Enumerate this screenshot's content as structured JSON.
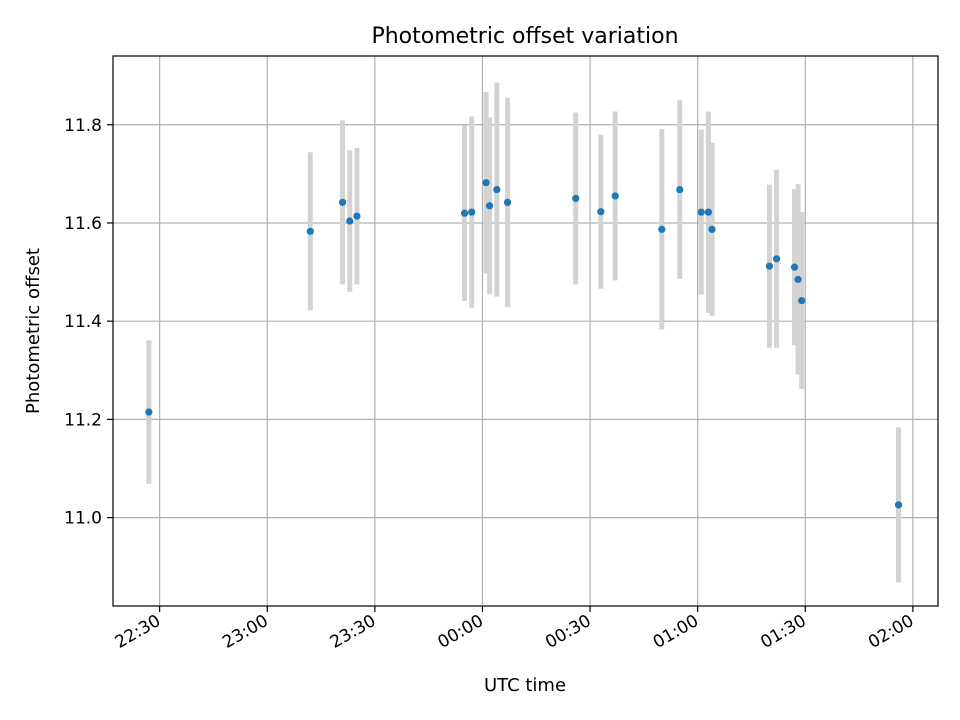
{
  "chart_data": {
    "type": "scatter",
    "title": "Photometric offset variation",
    "xlabel": "UTC time",
    "ylabel": "Photometric offset",
    "x_ticks": [
      "22:30",
      "23:00",
      "23:30",
      "00:00",
      "00:30",
      "01:00",
      "01:30",
      "02:00"
    ],
    "y_ticks": [
      "11.0",
      "11.2",
      "11.4",
      "11.6",
      "11.8"
    ],
    "xlim": [
      "22:17",
      "02:07"
    ],
    "ylim": [
      10.82,
      11.94
    ],
    "grid": true,
    "colors": {
      "points": "#1f77b4",
      "error_bars": "#d3d3d3",
      "grid": "#b0b0b0"
    },
    "points": [
      {
        "time": "22:27",
        "value": 11.215,
        "err": 0.146
      },
      {
        "time": "23:12",
        "value": 11.583,
        "err": 0.161
      },
      {
        "time": "23:21",
        "value": 11.642,
        "err": 0.167
      },
      {
        "time": "23:23",
        "value": 11.604,
        "err": 0.144
      },
      {
        "time": "23:25",
        "value": 11.614,
        "err": 0.139
      },
      {
        "time": "23:55",
        "value": 11.62,
        "err": 0.179
      },
      {
        "time": "23:57",
        "value": 11.622,
        "err": 0.195
      },
      {
        "time": "00:01",
        "value": 11.682,
        "err": 0.185
      },
      {
        "time": "00:02",
        "value": 11.635,
        "err": 0.18
      },
      {
        "time": "00:04",
        "value": 11.668,
        "err": 0.218
      },
      {
        "time": "00:07",
        "value": 11.642,
        "err": 0.213
      },
      {
        "time": "00:26",
        "value": 11.65,
        "err": 0.175
      },
      {
        "time": "00:33",
        "value": 11.623,
        "err": 0.157
      },
      {
        "time": "00:37",
        "value": 11.655,
        "err": 0.172
      },
      {
        "time": "00:50",
        "value": 11.587,
        "err": 0.204
      },
      {
        "time": "00:55",
        "value": 11.668,
        "err": 0.182
      },
      {
        "time": "01:01",
        "value": 11.622,
        "err": 0.168
      },
      {
        "time": "01:03",
        "value": 11.622,
        "err": 0.205
      },
      {
        "time": "01:04",
        "value": 11.587,
        "err": 0.176
      },
      {
        "time": "01:20",
        "value": 11.512,
        "err": 0.166
      },
      {
        "time": "01:22",
        "value": 11.527,
        "err": 0.181
      },
      {
        "time": "01:27",
        "value": 11.51,
        "err": 0.159
      },
      {
        "time": "01:28",
        "value": 11.485,
        "err": 0.194
      },
      {
        "time": "01:29",
        "value": 11.442,
        "err": 0.18
      },
      {
        "time": "01:56",
        "value": 11.026,
        "err": 0.158
      }
    ]
  }
}
